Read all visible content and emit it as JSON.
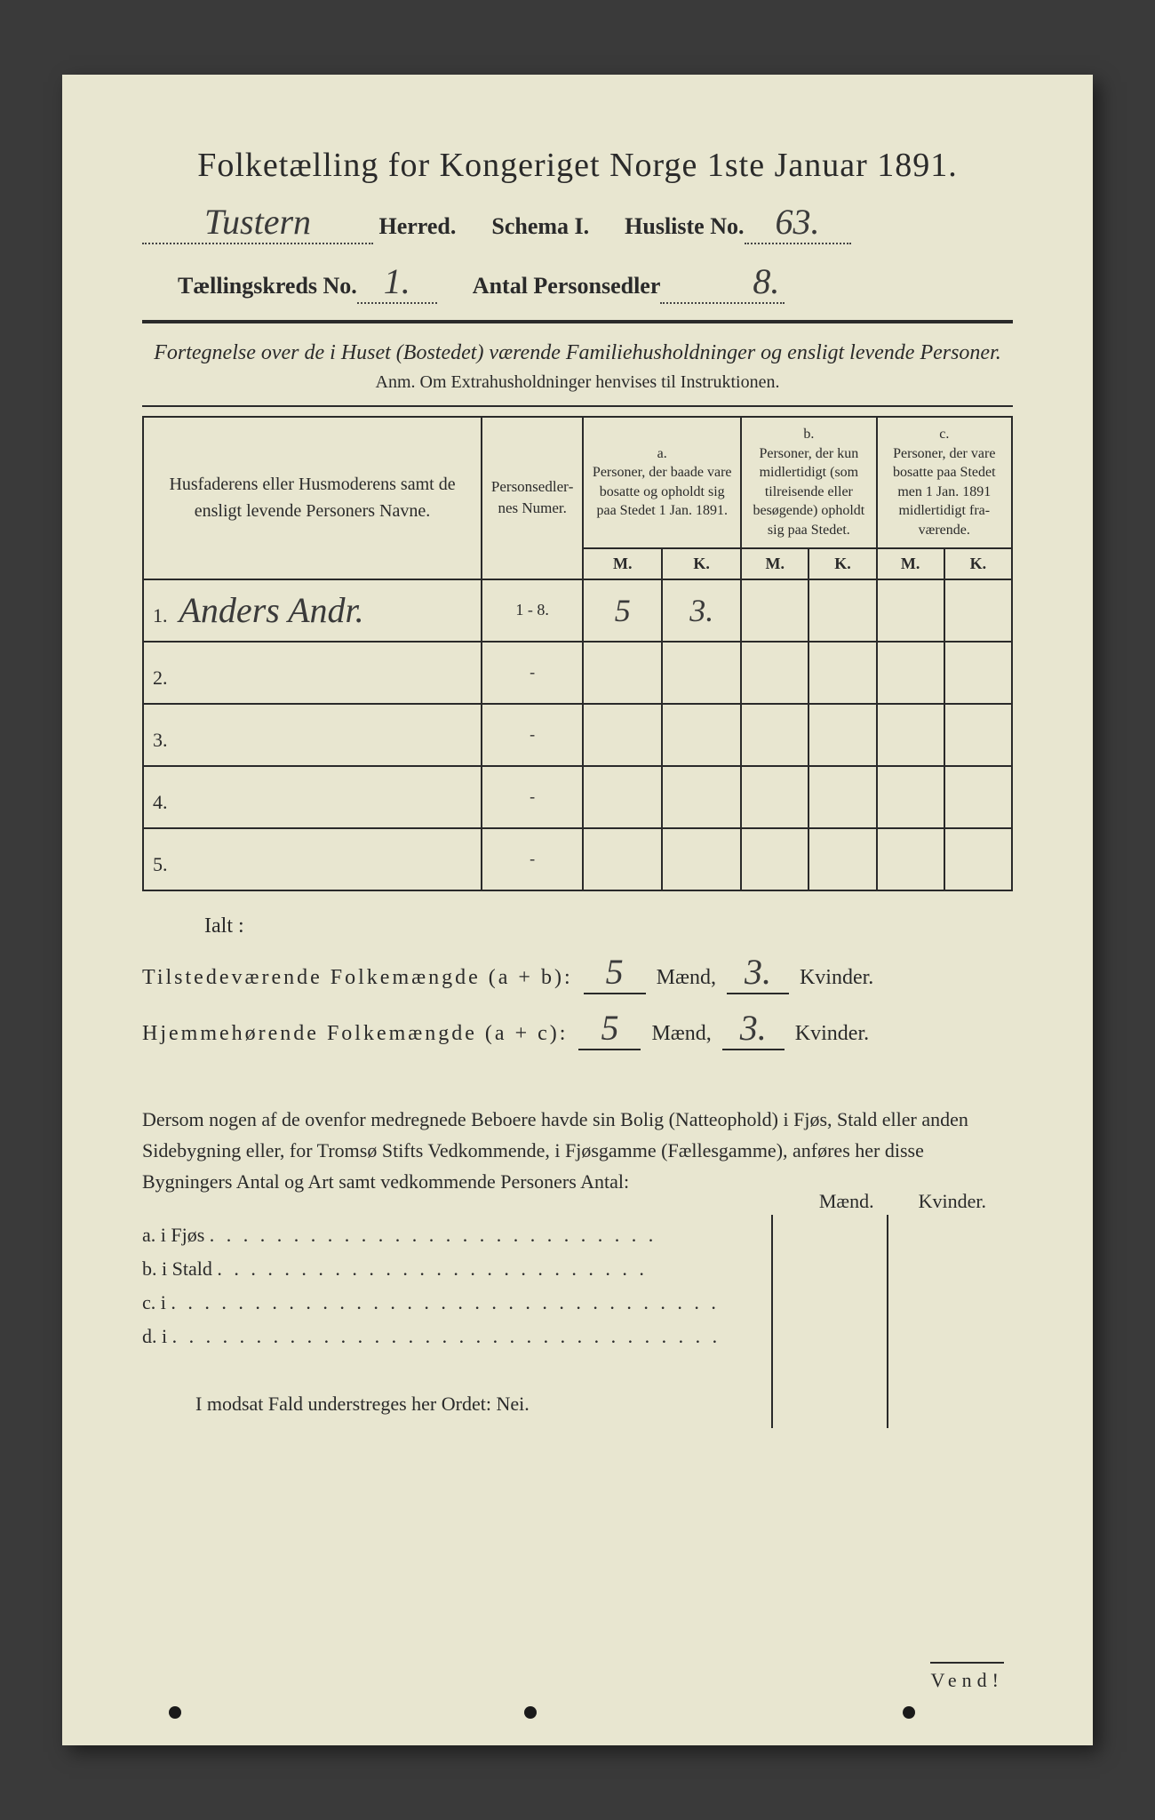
{
  "title": "Folketælling for Kongeriget Norge 1ste Januar 1891.",
  "herred_hand": "Tustern",
  "herred_label": "Herred.",
  "schema_label": "Schema I.",
  "husliste_label": "Husliste No.",
  "husliste_no": "63.",
  "kreds_label": "Tællingskreds No.",
  "kreds_no": "1.",
  "antal_label": "Antal Personsedler",
  "antal_no": "8.",
  "subtitle": "Fortegnelse over de i Huset (Bostedet) værende Familiehusholdninger og ensligt levende Personer.",
  "anm": "Anm.  Om Extrahusholdninger henvises til Instruktionen.",
  "table": {
    "col_names_header": "Husfaderens eller Husmoderens samt de ensligt levende Personers Navne.",
    "col_nummer": "Person­sedler­nes Numer.",
    "col_a": "a.\nPersoner, der baade vare bosatte og opholdt sig paa Stedet 1 Jan. 1891.",
    "col_b": "b.\nPersoner, der kun midlertidigt (som tilreisende eller besøgende) opholdt sig paa Stedet.",
    "col_c": "c.\nPersoner, der vare bosatte paa Stedet men 1 Jan. 1891 midlertidigt fra­værende.",
    "mk_m": "M.",
    "mk_k": "K.",
    "rows": [
      {
        "n": "1.",
        "name": "Anders Andr.",
        "numer": "1 - 8.",
        "am": "5",
        "ak": "3.",
        "bm": "",
        "bk": "",
        "cm": "",
        "ck": ""
      },
      {
        "n": "2.",
        "name": "",
        "numer": "-",
        "am": "",
        "ak": "",
        "bm": "",
        "bk": "",
        "cm": "",
        "ck": ""
      },
      {
        "n": "3.",
        "name": "",
        "numer": "-",
        "am": "",
        "ak": "",
        "bm": "",
        "bk": "",
        "cm": "",
        "ck": ""
      },
      {
        "n": "4.",
        "name": "",
        "numer": "-",
        "am": "",
        "ak": "",
        "bm": "",
        "bk": "",
        "cm": "",
        "ck": ""
      },
      {
        "n": "5.",
        "name": "",
        "numer": "-",
        "am": "",
        "ak": "",
        "bm": "",
        "bk": "",
        "cm": "",
        "ck": ""
      }
    ]
  },
  "ialt": "Ialt :",
  "tilstede_label": "Tilstedeværende Folkemængde (a + b):",
  "hjemme_label": "Hjemmehørende Folkemængde (a + c):",
  "maend": "Mænd,",
  "kvinder": "Kvinder.",
  "tilstede_m": "5",
  "tilstede_k": "3.",
  "hjemme_m": "5",
  "hjemme_k": "3.",
  "para": "Dersom nogen af de ovenfor medregnede Beboere havde sin Bolig (Natte­ophold) i Fjøs, Stald eller anden Sidebygning eller, for Tromsø Stifts Ved­kommende, i Fjøsgamme (Fællesgamme), anføres her disse Bygningers Antal og Art samt vedkommende Personers Antal:",
  "mk_maend": "Mænd.",
  "mk_kvinder": "Kvinder.",
  "bygn": {
    "a": "a.   i        Fjøs",
    "b": "b.   i        Stald",
    "c": "c.   i",
    "d": "d.   i"
  },
  "nei": "I modsat Fald understreges her Ordet: Nei.",
  "vend": "Vend!",
  "colors": {
    "paper": "#e8e6d0",
    "ink": "#2a2a2a",
    "bg": "#3a3a3a"
  }
}
